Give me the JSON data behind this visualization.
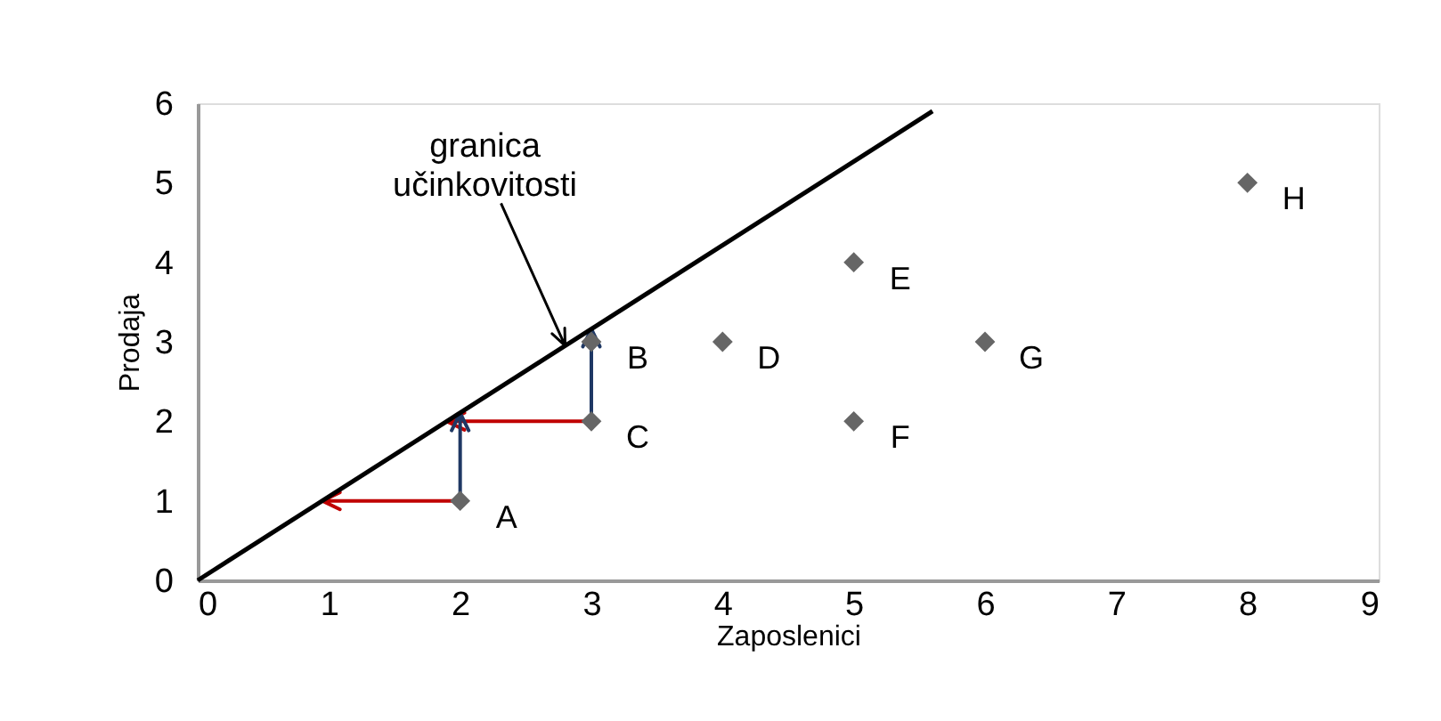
{
  "chart_data": {
    "type": "scatter",
    "xlabel": "Zaposlenici",
    "ylabel": "Prodaja",
    "x": [
      2,
      3,
      3,
      4,
      5,
      5,
      6,
      8
    ],
    "values": [
      1,
      3,
      2,
      3,
      4,
      2,
      3,
      5
    ],
    "color": "#666666",
    "marker": "diamond",
    "series": [
      {
        "type": "line",
        "color": "#000000",
        "marker": "none",
        "line_style": "solid",
        "x": [
          0,
          5.6
        ],
        "values": [
          0,
          5.9
        ]
      }
    ],
    "annotations": [
      {
        "text": "granica\nučinkovitosti",
        "x": 2.8,
        "y": 2.95
      },
      {
        "text": "A",
        "x": 2,
        "y": 1
      },
      {
        "text": "B",
        "x": 3,
        "y": 3
      },
      {
        "text": "C",
        "x": 3,
        "y": 2
      },
      {
        "text": "D",
        "x": 4,
        "y": 3
      },
      {
        "text": "E",
        "x": 5,
        "y": 4
      },
      {
        "text": "F",
        "x": 5,
        "y": 2
      },
      {
        "text": "G",
        "x": 6,
        "y": 3
      },
      {
        "text": "H",
        "x": 8,
        "y": 5
      }
    ],
    "xlim": [
      0,
      9
    ],
    "ylim": [
      0,
      6
    ],
    "xticks": [
      0,
      1,
      2,
      3,
      4,
      5,
      6,
      7,
      8,
      9
    ],
    "yticks": [
      0,
      1,
      2,
      3,
      4,
      5,
      6
    ],
    "grid": false
  }
}
